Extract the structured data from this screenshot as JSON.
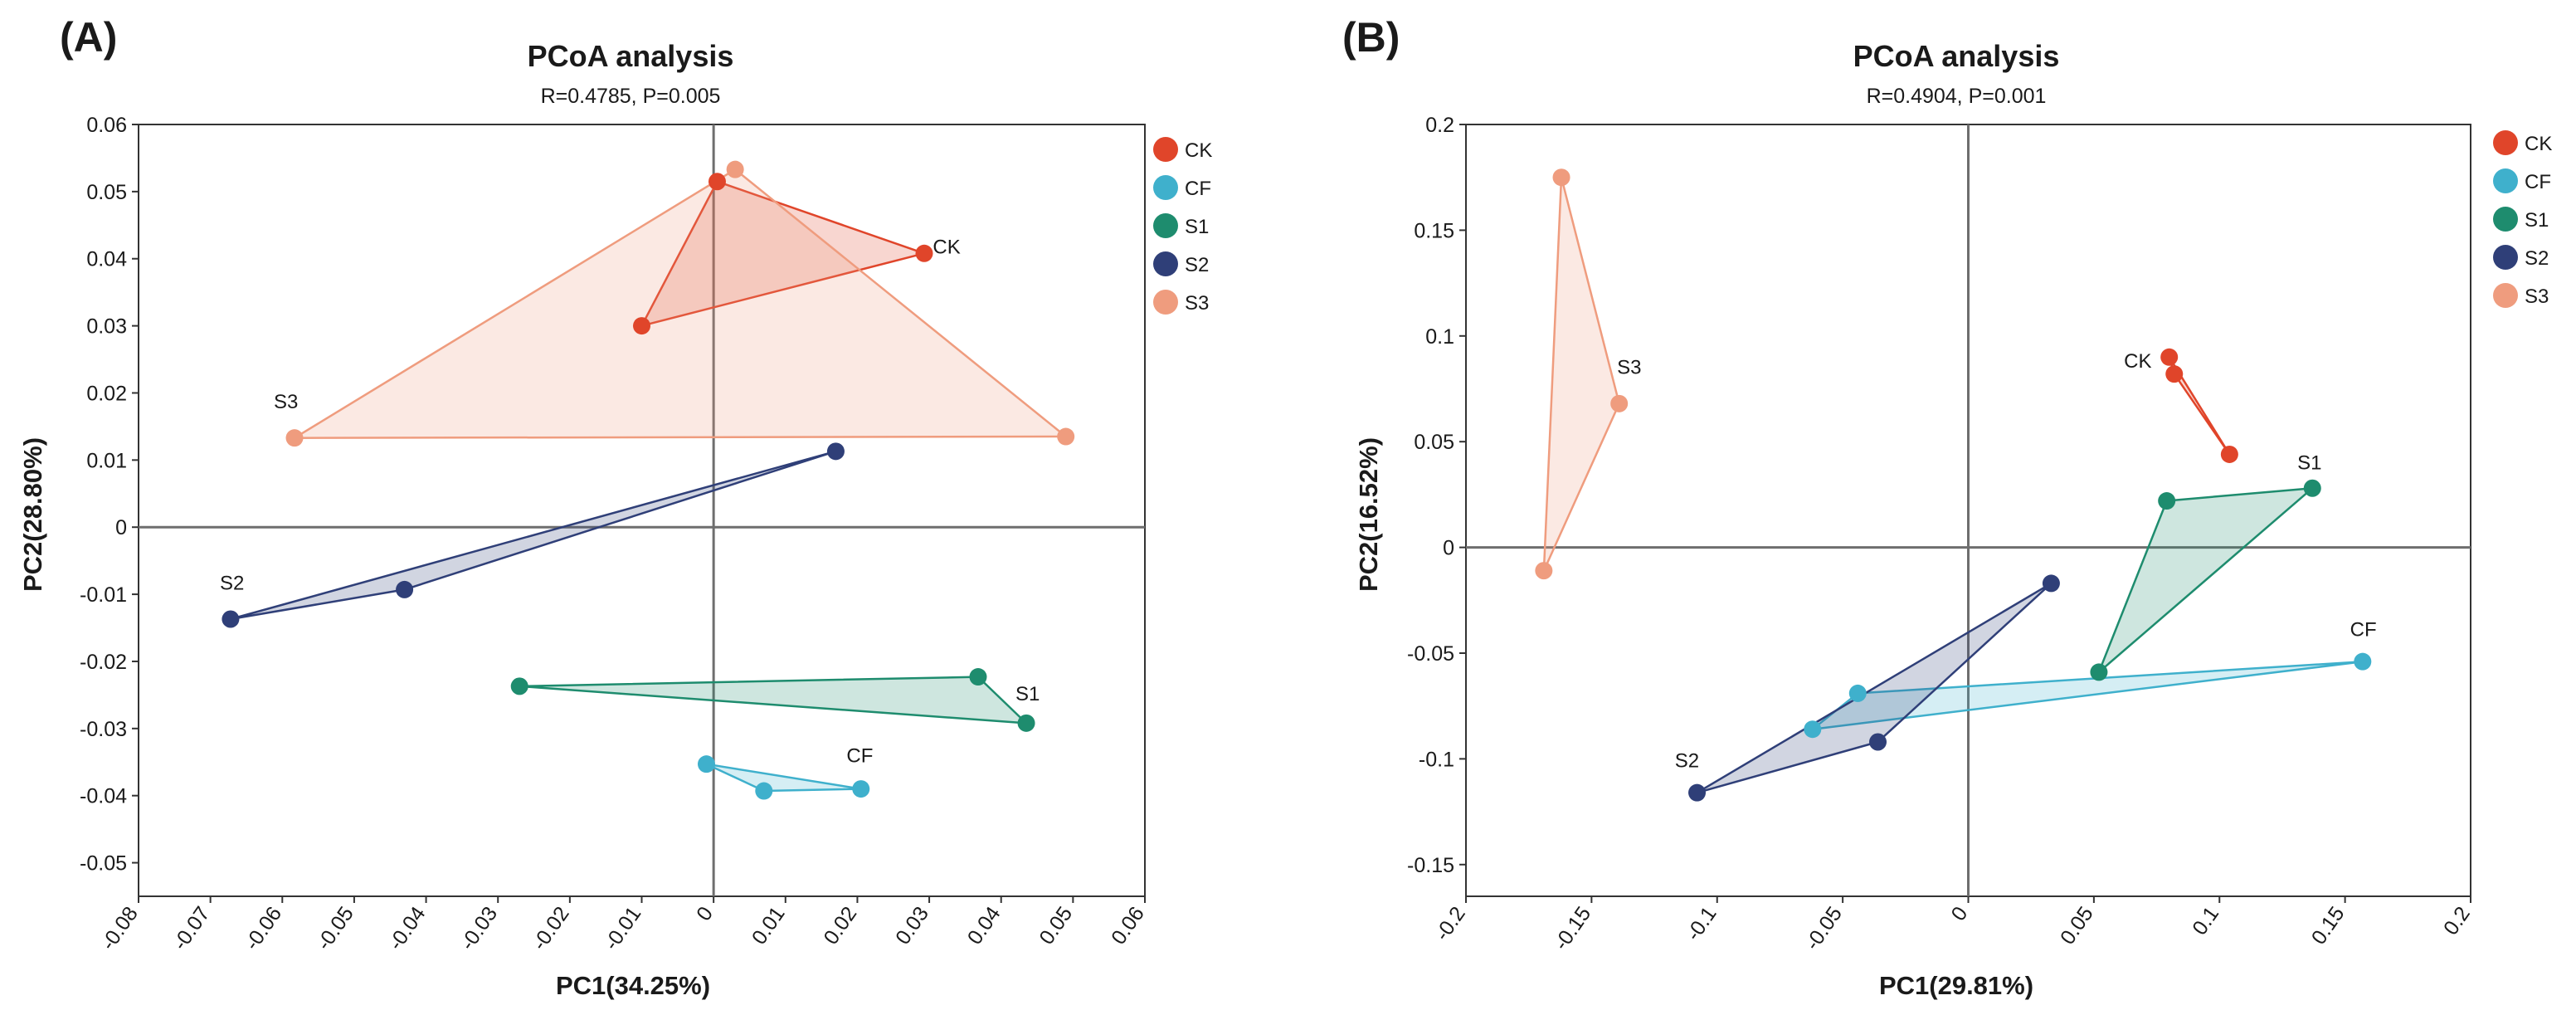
{
  "chart_data": [
    {
      "type": "scatter",
      "panel_label": "(A)",
      "title": "PCoA analysis",
      "subtitle": "R=0.4785, P=0.005",
      "xlabel": "PC1(34.25%)",
      "ylabel": "PC2(28.80%)",
      "xlim": [
        -0.08,
        0.06
      ],
      "ylim": [
        -0.055,
        0.06
      ],
      "xticks": [
        -0.08,
        -0.07,
        -0.06,
        -0.05,
        -0.04,
        -0.03,
        -0.02,
        -0.01,
        0,
        0.01,
        0.02,
        0.03,
        0.04,
        0.05,
        0.06
      ],
      "xtick_labels": [
        "-0.08",
        "-0.07",
        "-0.06",
        "-0.05",
        "-0.04",
        "-0.03",
        "-0.02",
        "-0.01",
        "0",
        "0.01",
        "0.02",
        "0.03",
        "0.04",
        "0.05",
        "0.06"
      ],
      "yticks": [
        0.06,
        0.05,
        0.04,
        0.03,
        0.02,
        0.01,
        0,
        -0.01,
        -0.02,
        -0.03,
        -0.04,
        -0.05
      ],
      "ytick_labels": [
        "0.06",
        "0.05",
        "0.04",
        "0.03",
        "0.02",
        "0.01",
        "0",
        "-0.01",
        "-0.02",
        "-0.03",
        "-0.04",
        "-0.05"
      ],
      "legend_position": "right",
      "series": [
        {
          "name": "CK",
          "color": "#e0452a",
          "points": [
            [
              0.0005,
              0.0515
            ],
            [
              0.0293,
              0.0408
            ],
            [
              -0.01,
              0.03
            ]
          ],
          "label": "CK",
          "label_at": [
            0.0305,
            0.0408
          ],
          "label_anchor": "start"
        },
        {
          "name": "CF",
          "color": "#3fb0cc",
          "points": [
            [
              -0.001,
              -0.0353
            ],
            [
              0.007,
              -0.0393
            ],
            [
              0.0205,
              -0.039
            ]
          ],
          "label": "CF",
          "label_at": [
            0.0185,
            -0.035
          ],
          "label_anchor": "start"
        },
        {
          "name": "S1",
          "color": "#1e8c6e",
          "points": [
            [
              -0.027,
              -0.0237
            ],
            [
              0.0368,
              -0.0223
            ],
            [
              0.0435,
              -0.0292
            ]
          ],
          "label": "S1",
          "label_at": [
            0.042,
            -0.0258
          ],
          "label_anchor": "start"
        },
        {
          "name": "S2",
          "color": "#2f3f78",
          "points": [
            [
              -0.0672,
              -0.0137
            ],
            [
              -0.043,
              -0.0093
            ],
            [
              0.017,
              0.0113
            ]
          ],
          "label": "S2",
          "label_at": [
            -0.067,
            -0.0093
          ],
          "label_anchor": "middle"
        },
        {
          "name": "S3",
          "color": "#ef9c7e",
          "points": [
            [
              0.003,
              0.0533
            ],
            [
              -0.0583,
              0.0133
            ],
            [
              0.049,
              0.0135
            ]
          ],
          "label": "S3",
          "label_at": [
            -0.0595,
            0.0177
          ],
          "label_anchor": "middle"
        }
      ]
    },
    {
      "type": "scatter",
      "panel_label": "(B)",
      "title": "PCoA analysis",
      "subtitle": "R=0.4904, P=0.001",
      "xlabel": "PC1(29.81%)",
      "ylabel": "PC2(16.52%)",
      "xlim": [
        -0.2,
        0.2
      ],
      "ylim": [
        -0.165,
        0.2
      ],
      "xticks": [
        -0.2,
        -0.15,
        -0.1,
        -0.05,
        0,
        0.05,
        0.1,
        0.15,
        0.2
      ],
      "xtick_labels": [
        "-0.2",
        "-0.15",
        "-0.1",
        "-0.05",
        "0",
        "0.05",
        "0.1",
        "0.15",
        "0.2"
      ],
      "yticks": [
        0.2,
        0.15,
        0.1,
        0.05,
        0,
        -0.05,
        -0.1,
        -0.15
      ],
      "ytick_labels": [
        "0.2",
        "0.15",
        "0.1",
        "0.05",
        "0",
        "-0.05",
        "-0.1",
        "-0.15"
      ],
      "legend_position": "right",
      "series": [
        {
          "name": "CK",
          "color": "#e0452a",
          "points": [
            [
              0.08,
              0.09
            ],
            [
              0.082,
              0.082
            ],
            [
              0.104,
              0.044
            ]
          ],
          "label": "CK",
          "label_at": [
            0.073,
            0.085
          ],
          "label_anchor": "end"
        },
        {
          "name": "CF",
          "color": "#3fb0cc",
          "points": [
            [
              -0.044,
              -0.069
            ],
            [
              -0.062,
              -0.086
            ],
            [
              0.157,
              -0.054
            ]
          ],
          "label": "CF",
          "label_at": [
            0.152,
            -0.042
          ],
          "label_anchor": "start"
        },
        {
          "name": "S1",
          "color": "#1e8c6e",
          "points": [
            [
              0.079,
              0.022
            ],
            [
              0.137,
              0.028
            ],
            [
              0.052,
              -0.059
            ]
          ],
          "label": "S1",
          "label_at": [
            0.131,
            0.037
          ],
          "label_anchor": "start"
        },
        {
          "name": "S2",
          "color": "#2f3f78",
          "points": [
            [
              -0.108,
              -0.116
            ],
            [
              -0.036,
              -0.092
            ],
            [
              0.033,
              -0.017
            ]
          ],
          "label": "S2",
          "label_at": [
            -0.112,
            -0.104
          ],
          "label_anchor": "middle"
        },
        {
          "name": "S3",
          "color": "#ef9c7e",
          "points": [
            [
              -0.162,
              0.175
            ],
            [
              -0.139,
              0.068
            ],
            [
              -0.169,
              -0.011
            ]
          ],
          "label": "S3",
          "label_at": [
            -0.135,
            0.082
          ],
          "label_anchor": "middle"
        }
      ]
    }
  ]
}
